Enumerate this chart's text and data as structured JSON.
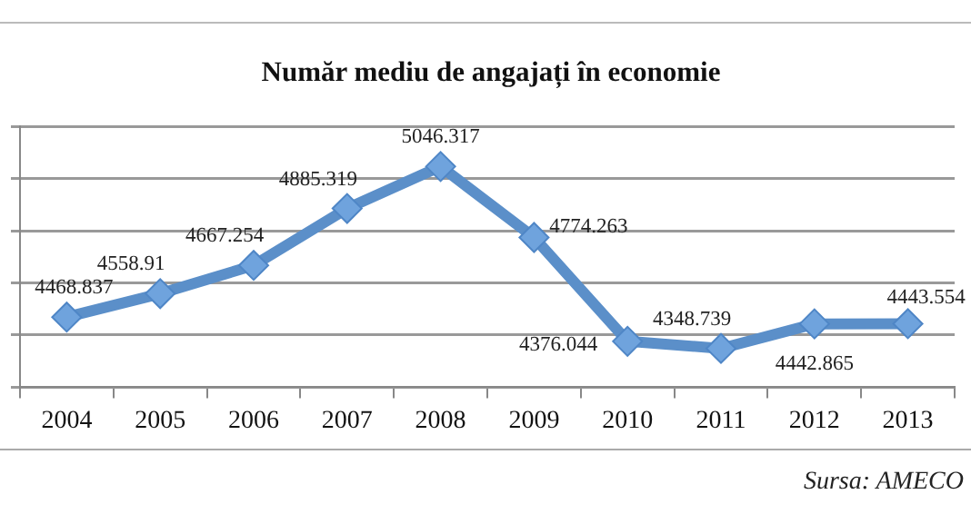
{
  "chart_data": {
    "type": "line",
    "title": "Număr mediu de angajați în economie",
    "categories": [
      "2004",
      "2005",
      "2006",
      "2007",
      "2008",
      "2009",
      "2010",
      "2011",
      "2012",
      "2013"
    ],
    "series": [
      {
        "color": "#5b8fc9",
        "values": [
          4468.837,
          4558.91,
          4667.254,
          4885.319,
          5046.317,
          4774.263,
          4376.044,
          4348.739,
          4442.865,
          4443.554
        ]
      }
    ],
    "ylim": [
      4200,
      5200
    ],
    "yticks": [
      {
        "value": 4200,
        "label": null
      },
      {
        "value": 4400,
        "label": null
      },
      {
        "value": 4600,
        "label": null
      },
      {
        "value": 4800,
        "label": null
      },
      {
        "value": 5000,
        "label": null
      },
      {
        "value": 5200,
        "label": null
      }
    ],
    "tick_labels": "x",
    "grid": "y",
    "legend": false,
    "marker": "diamond",
    "line_style": "solid",
    "data_labels": true,
    "annotations": [
      "Sursa: AMECO"
    ]
  }
}
